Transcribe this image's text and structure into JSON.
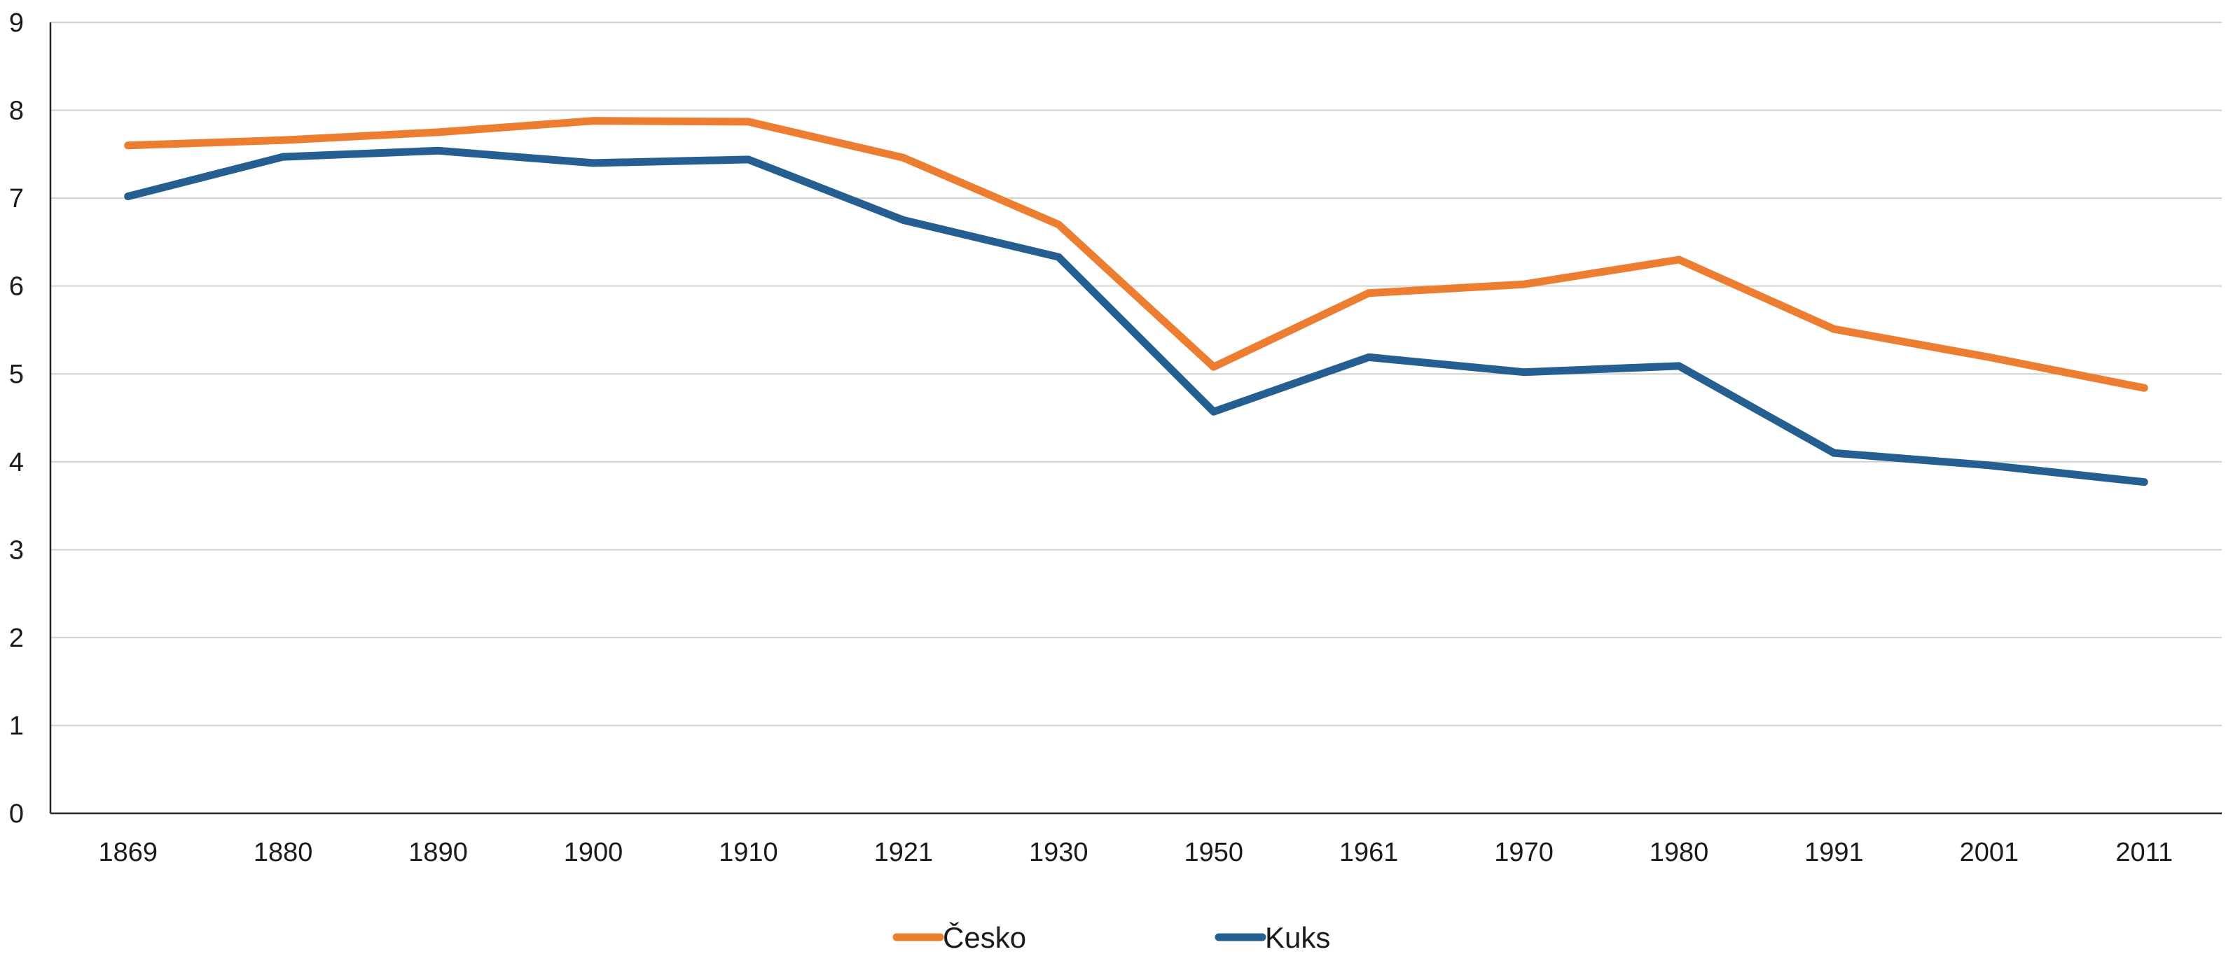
{
  "chart_data": {
    "type": "line",
    "categories": [
      "1869",
      "1880",
      "1890",
      "1900",
      "1910",
      "1921",
      "1930",
      "1950",
      "1961",
      "1970",
      "1980",
      "1991",
      "2001",
      "2011"
    ],
    "series": [
      {
        "name": "Česko",
        "color": "#ED7D31",
        "values": [
          7.6,
          7.66,
          7.75,
          7.88,
          7.87,
          7.46,
          6.7,
          5.08,
          5.92,
          6.02,
          6.3,
          5.51,
          5.19,
          4.84
        ]
      },
      {
        "name": "Kuks",
        "color": "#255E91",
        "values": [
          7.02,
          7.47,
          7.54,
          7.4,
          7.44,
          6.75,
          6.33,
          4.57,
          5.19,
          5.02,
          5.09,
          4.1,
          3.96,
          3.77
        ]
      }
    ],
    "ylim": [
      0,
      9
    ],
    "yticks": [
      "0",
      "1",
      "2",
      "3",
      "4",
      "5",
      "6",
      "7",
      "8",
      "9"
    ],
    "grid": true,
    "legend_position": "bottom-center"
  }
}
